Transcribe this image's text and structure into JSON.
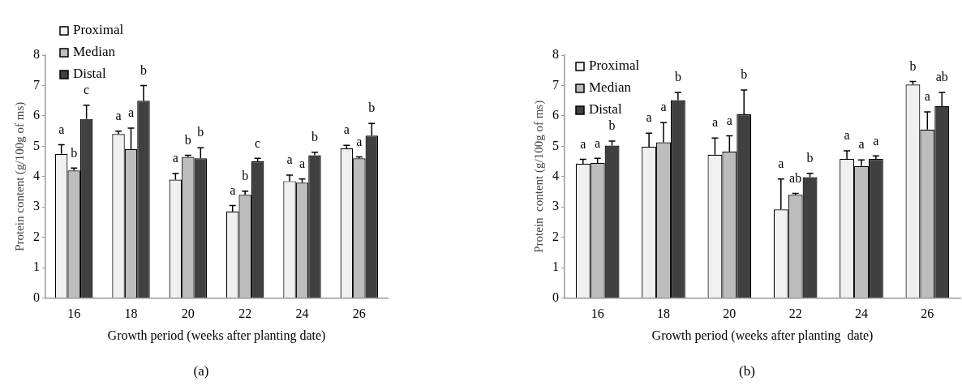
{
  "chart_data": [
    {
      "type": "bar",
      "xlabel": "Growth period (weeks after planting date)",
      "ylabel": "Protein content (g/100g of ms)",
      "categories": [
        "16",
        "18",
        "20",
        "22",
        "24",
        "26"
      ],
      "ylim": [
        0,
        8
      ],
      "yticks": [
        0,
        1,
        2,
        3,
        4,
        5,
        6,
        7,
        8
      ],
      "grid": false,
      "legend": "top left",
      "annotations": [
        "(a)"
      ],
      "series": [
        {
          "name": "Proximal",
          "color": "#f0f0f0",
          "values": [
            4.75,
            5.4,
            3.9,
            2.85,
            3.85,
            4.93
          ],
          "errors": [
            0.3,
            0.1,
            0.2,
            0.2,
            0.2,
            0.1
          ],
          "value_labels": [
            "a",
            "a",
            "a",
            "a",
            "a",
            "a"
          ]
        },
        {
          "name": "Median",
          "color": "#bdbdbd",
          "values": [
            4.2,
            4.9,
            4.65,
            3.4,
            3.8,
            4.6
          ],
          "errors": [
            0.08,
            0.7,
            0.05,
            0.12,
            0.12,
            0.05
          ],
          "value_labels": [
            "b",
            "a",
            "b",
            "b",
            "a",
            "a"
          ]
        },
        {
          "name": "Distal",
          "color": "#404040",
          "values": [
            5.9,
            6.5,
            4.6,
            4.5,
            4.7,
            5.35
          ],
          "errors": [
            0.45,
            0.5,
            0.35,
            0.1,
            0.1,
            0.4
          ],
          "value_labels": [
            "c",
            "b",
            "b",
            "c",
            "b",
            "b"
          ]
        }
      ]
    },
    {
      "type": "bar",
      "xlabel": "Growth period (weeks after planting  date)",
      "ylabel": "Protein  content (g/100g of ms)",
      "categories": [
        "16",
        "18",
        "20",
        "22",
        "24",
        "26"
      ],
      "ylim": [
        0,
        8
      ],
      "yticks": [
        0,
        1,
        2,
        3,
        4,
        5,
        6,
        7,
        8
      ],
      "grid": false,
      "legend": "top left",
      "annotations": [
        "(b)"
      ],
      "series": [
        {
          "name": "Proximal",
          "color": "#f0f0f0",
          "values": [
            4.42,
            4.98,
            4.72,
            2.92,
            4.58,
            7.03
          ],
          "errors": [
            0.15,
            0.45,
            0.55,
            1.0,
            0.27,
            0.1
          ],
          "value_labels": [
            "a",
            "a",
            "a",
            "a",
            "a",
            "b"
          ]
        },
        {
          "name": "Median",
          "color": "#bdbdbd",
          "values": [
            4.45,
            5.13,
            4.82,
            3.4,
            4.35,
            5.55
          ],
          "errors": [
            0.15,
            0.65,
            0.52,
            0.05,
            0.2,
            0.58
          ],
          "value_labels": [
            "a",
            "a",
            "a",
            "ab",
            "a",
            "a"
          ]
        },
        {
          "name": "Distal",
          "color": "#404040",
          "values": [
            5.02,
            6.52,
            6.05,
            3.98,
            4.58,
            6.32
          ],
          "errors": [
            0.15,
            0.25,
            0.8,
            0.13,
            0.1,
            0.45
          ],
          "value_labels": [
            "b",
            "b",
            "b",
            "b",
            "a",
            "ab"
          ]
        }
      ]
    }
  ]
}
